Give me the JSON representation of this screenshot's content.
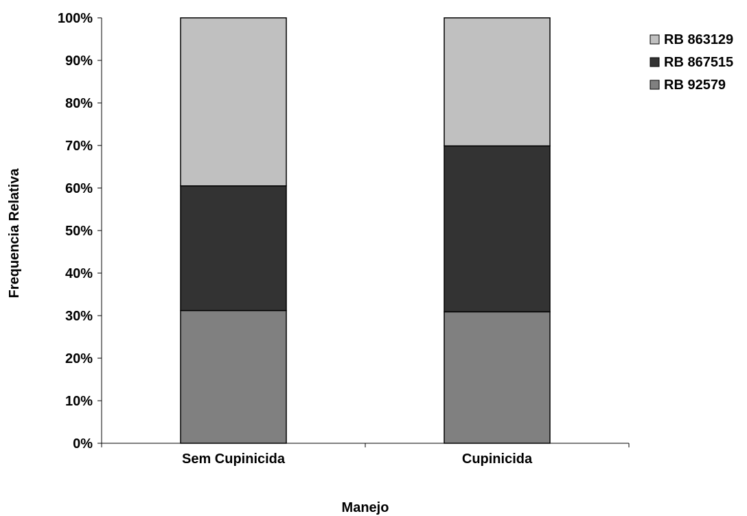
{
  "chart_data": {
    "type": "bar",
    "stacked": true,
    "percent_stacked": true,
    "categories": [
      "Sem Cupinicida",
      "Cupinicida"
    ],
    "series": [
      {
        "name": "RB 92579",
        "values": [
          31.2,
          30.9
        ],
        "color": "#808080"
      },
      {
        "name": "RB 867515",
        "values": [
          29.3,
          39.0
        ],
        "color": "#333333"
      },
      {
        "name": "RB 863129",
        "values": [
          39.5,
          30.1
        ],
        "color": "#c0c0c0"
      }
    ],
    "legend_order": [
      "RB 863129",
      "RB 867515",
      "RB 92579"
    ],
    "title": "",
    "xlabel": "Manejo",
    "ylabel": "Frequencia Relativa",
    "ylim": [
      0,
      100
    ],
    "yticks": [
      "0%",
      "10%",
      "20%",
      "30%",
      "40%",
      "50%",
      "60%",
      "70%",
      "80%",
      "90%",
      "100%"
    ],
    "grid": false,
    "legend_position": "top-right"
  }
}
